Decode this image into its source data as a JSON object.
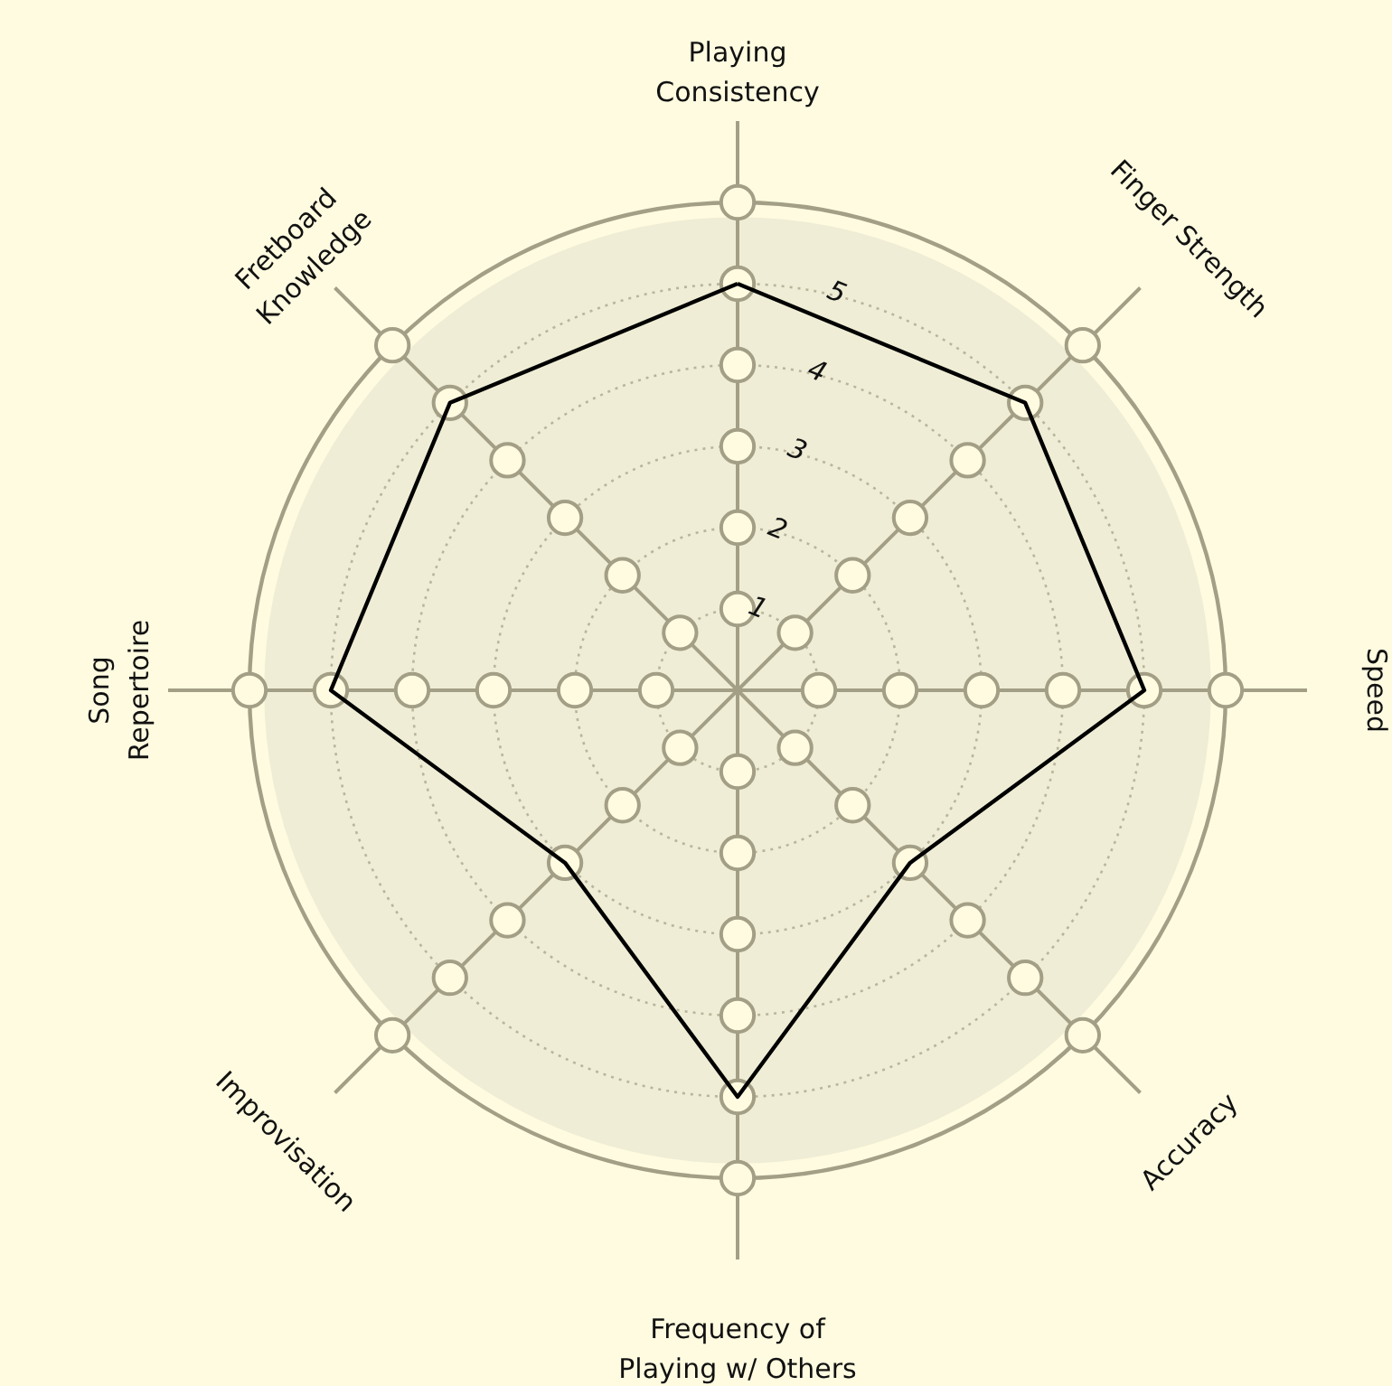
{
  "chart_data": {
    "type": "radar",
    "categories": [
      "Playing\nConsistency",
      "Finger Strength",
      "Speed",
      "Accuracy",
      "Frequency of\nPlaying w/ Others",
      "Improvisation",
      "Song\nRepertoire",
      "Fretboard\nKnowledge"
    ],
    "series": [
      {
        "color": "#000000",
        "values": [
          5,
          5,
          5,
          3,
          5,
          3,
          5,
          5
        ]
      }
    ],
    "ylim": [
      0,
      6
    ],
    "yticks": [
      1,
      2,
      3,
      4,
      5
    ],
    "grid": true
  }
}
